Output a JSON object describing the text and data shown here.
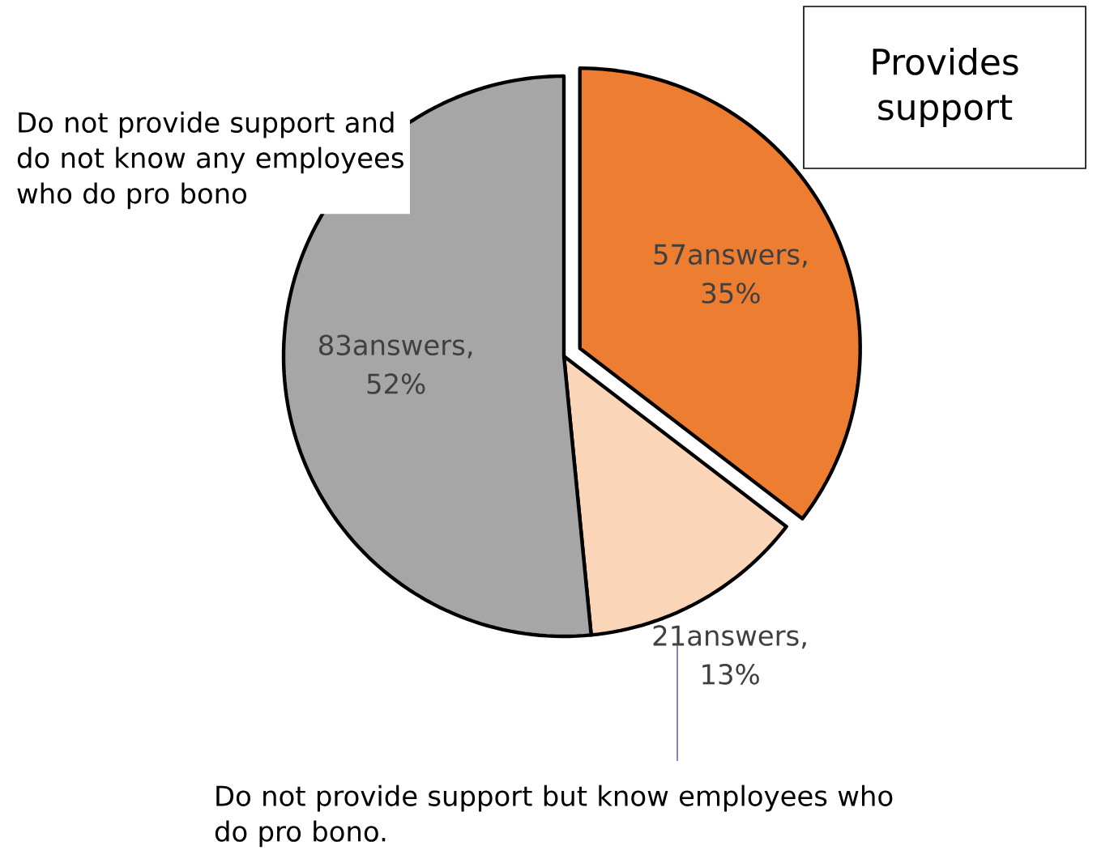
{
  "chart_data": {
    "type": "pie",
    "categories": [
      "Provides support",
      "Do not provide support but know employees who do pro bono.",
      "Do not provide support and do not know any employees who do pro bono"
    ],
    "values": [
      57,
      21,
      83
    ],
    "value_labels": [
      "57answers, 35%",
      "21answers, 13%",
      "83answers, 52%"
    ],
    "colors": [
      "#ed7d31",
      "#fbd5b8",
      "#a6a6a6"
    ],
    "legend": false
  }
}
